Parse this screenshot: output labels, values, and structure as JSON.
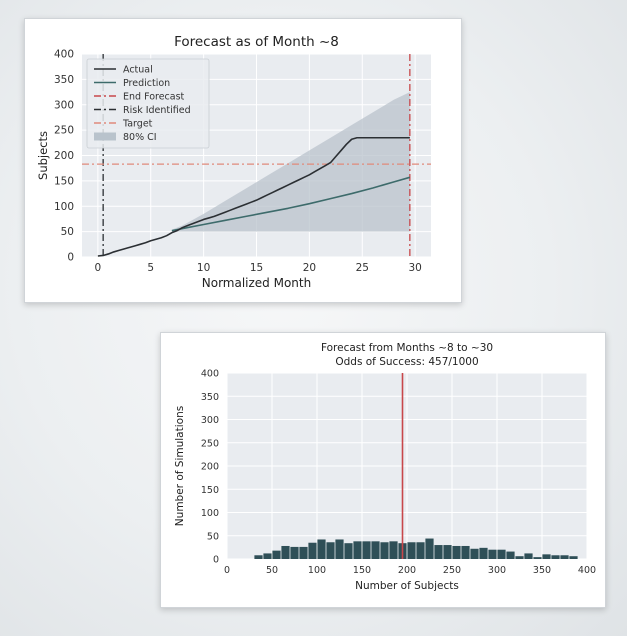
{
  "chart_data": [
    {
      "type": "line",
      "title": "Forecast as of Month ~8",
      "xlabel": "Normalized Month",
      "ylabel": "Subjects",
      "xlim": [
        -1.5,
        31.5
      ],
      "ylim": [
        0,
        400
      ],
      "xticks": [
        0,
        5,
        10,
        15,
        20,
        25,
        30
      ],
      "yticks": [
        0,
        50,
        100,
        150,
        200,
        250,
        300,
        350,
        400
      ],
      "grid": true,
      "legend_position": "top-left",
      "legend": [
        {
          "label": "Actual",
          "style": "solid",
          "color": "#2b2f33"
        },
        {
          "label": "Prediction",
          "style": "solid",
          "color": "#3d6b6b"
        },
        {
          "label": "End Forecast",
          "style": "dashdot",
          "color": "#c8474a"
        },
        {
          "label": "Risk Identified",
          "style": "dashdot",
          "color": "#2b2f33"
        },
        {
          "label": "Target",
          "style": "dashdot",
          "color": "#e08a7a"
        },
        {
          "label": "80% CI",
          "style": "patch",
          "color": "#b9c3cc"
        }
      ],
      "series": [
        {
          "name": "Actual",
          "x": [
            0,
            0.5,
            1,
            1.5,
            2,
            2.5,
            3,
            3.5,
            4,
            4.5,
            5,
            5.5,
            6,
            6.5,
            7,
            7.5,
            8,
            8.5,
            9,
            9.5,
            10,
            10.5,
            11,
            11.5,
            12,
            12.5,
            13,
            13.5,
            14,
            14.5,
            15,
            15.5,
            16,
            16.5,
            17,
            17.5,
            18,
            18.5,
            19,
            19.5,
            20,
            20.5,
            21,
            21.5,
            22,
            22.5,
            23,
            23.5,
            24,
            24.5,
            25,
            26,
            27,
            28,
            29,
            29.5
          ],
          "y": [
            2,
            3,
            6,
            10,
            13,
            16,
            19,
            22,
            25,
            28,
            32,
            35,
            38,
            42,
            48,
            52,
            58,
            62,
            66,
            70,
            74,
            77,
            80,
            84,
            88,
            92,
            96,
            100,
            104,
            108,
            112,
            117,
            122,
            127,
            132,
            137,
            142,
            147,
            152,
            157,
            162,
            168,
            174,
            180,
            186,
            198,
            210,
            222,
            232,
            235,
            235,
            235,
            235,
            235,
            235,
            235
          ]
        },
        {
          "name": "Prediction",
          "x": [
            7,
            8,
            10,
            12,
            14,
            16,
            18,
            20,
            22,
            24,
            26,
            28,
            29.5
          ],
          "y": [
            52,
            56,
            64,
            72,
            80,
            88,
            96,
            105,
            115,
            125,
            136,
            148,
            157
          ]
        },
        {
          "name": "80% CI",
          "x": [
            7,
            8,
            10,
            12,
            14,
            16,
            18,
            20,
            22,
            24,
            26,
            28,
            29.5
          ],
          "lower": [
            50,
            50,
            50,
            50,
            50,
            50,
            50,
            50,
            50,
            50,
            50,
            50,
            50
          ],
          "upper": [
            54,
            62,
            85,
            110,
            135,
            160,
            185,
            210,
            235,
            260,
            285,
            310,
            325
          ]
        }
      ],
      "annotations": [
        {
          "name": "End Forecast",
          "orientation": "vertical",
          "x": 29.5
        },
        {
          "name": "Risk Identified",
          "orientation": "vertical",
          "x": 0.5
        },
        {
          "name": "Target",
          "orientation": "horizontal",
          "y": 183
        }
      ]
    },
    {
      "type": "bar",
      "title": "Forecast from Months ~8 to ~30",
      "subtitle": "Odds of Success: 457/1000",
      "xlabel": "Number of Subjects",
      "ylabel": "Number of Simulations",
      "xlim": [
        0,
        400
      ],
      "ylim": [
        0,
        400
      ],
      "xticks": [
        0,
        50,
        100,
        150,
        200,
        250,
        300,
        350,
        400
      ],
      "yticks": [
        0,
        50,
        100,
        150,
        200,
        250,
        300,
        350,
        400
      ],
      "grid": true,
      "bar_color": "#2f4f57",
      "bins": [
        {
          "start": 30,
          "end": 40,
          "count": 8
        },
        {
          "start": 40,
          "end": 50,
          "count": 12
        },
        {
          "start": 50,
          "end": 60,
          "count": 18
        },
        {
          "start": 60,
          "end": 70,
          "count": 28
        },
        {
          "start": 70,
          "end": 80,
          "count": 26
        },
        {
          "start": 80,
          "end": 90,
          "count": 26
        },
        {
          "start": 90,
          "end": 100,
          "count": 35
        },
        {
          "start": 100,
          "end": 110,
          "count": 42
        },
        {
          "start": 110,
          "end": 120,
          "count": 36
        },
        {
          "start": 120,
          "end": 130,
          "count": 42
        },
        {
          "start": 130,
          "end": 140,
          "count": 34
        },
        {
          "start": 140,
          "end": 150,
          "count": 38
        },
        {
          "start": 150,
          "end": 160,
          "count": 38
        },
        {
          "start": 160,
          "end": 170,
          "count": 38
        },
        {
          "start": 170,
          "end": 180,
          "count": 36
        },
        {
          "start": 180,
          "end": 190,
          "count": 38
        },
        {
          "start": 190,
          "end": 200,
          "count": 34
        },
        {
          "start": 200,
          "end": 210,
          "count": 36
        },
        {
          "start": 210,
          "end": 220,
          "count": 36
        },
        {
          "start": 220,
          "end": 230,
          "count": 44
        },
        {
          "start": 230,
          "end": 240,
          "count": 30
        },
        {
          "start": 240,
          "end": 250,
          "count": 30
        },
        {
          "start": 250,
          "end": 260,
          "count": 28
        },
        {
          "start": 260,
          "end": 270,
          "count": 28
        },
        {
          "start": 270,
          "end": 280,
          "count": 22
        },
        {
          "start": 280,
          "end": 290,
          "count": 24
        },
        {
          "start": 290,
          "end": 300,
          "count": 20
        },
        {
          "start": 300,
          "end": 310,
          "count": 20
        },
        {
          "start": 310,
          "end": 320,
          "count": 16
        },
        {
          "start": 320,
          "end": 330,
          "count": 6
        },
        {
          "start": 330,
          "end": 340,
          "count": 12
        },
        {
          "start": 340,
          "end": 350,
          "count": 4
        },
        {
          "start": 350,
          "end": 360,
          "count": 10
        },
        {
          "start": 360,
          "end": 370,
          "count": 8
        },
        {
          "start": 370,
          "end": 380,
          "count": 8
        },
        {
          "start": 380,
          "end": 390,
          "count": 6
        }
      ],
      "annotations": [
        {
          "name": "target-line",
          "orientation": "vertical",
          "x": 195,
          "color": "#c8474a"
        }
      ]
    }
  ]
}
